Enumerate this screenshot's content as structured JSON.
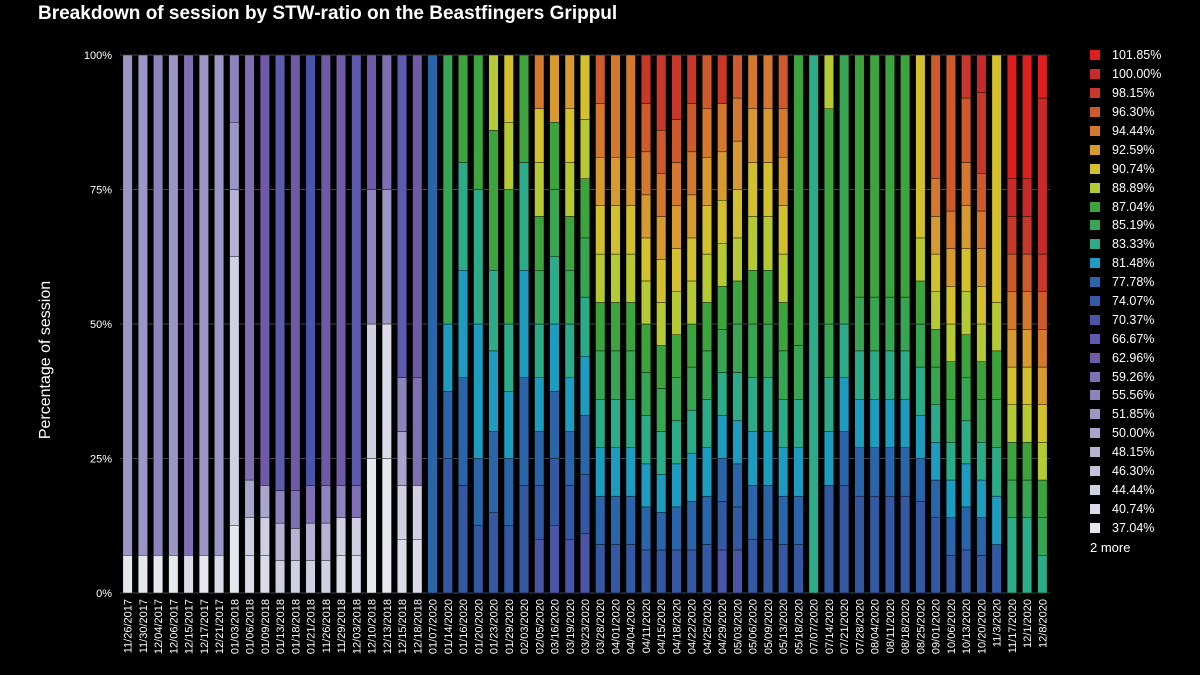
{
  "title": "Breakdown of session by STW-ratio on the Beastfingers Grippul",
  "legend_more": "2 more",
  "legend": [
    {
      "label": "101.85%",
      "color": "#dc1f1f"
    },
    {
      "label": "100.00%",
      "color": "#c62a2a"
    },
    {
      "label": "98.15%",
      "color": "#c8382a"
    },
    {
      "label": "96.30%",
      "color": "#cd5a2c"
    },
    {
      "label": "94.44%",
      "color": "#d3782e"
    },
    {
      "label": "92.59%",
      "color": "#d79a31"
    },
    {
      "label": "90.74%",
      "color": "#d2c02e"
    },
    {
      "label": "88.89%",
      "color": "#b5c934"
    },
    {
      "label": "87.04%",
      "color": "#3da33c"
    },
    {
      "label": "85.19%",
      "color": "#37a552"
    },
    {
      "label": "83.33%",
      "color": "#2bab88"
    },
    {
      "label": "81.48%",
      "color": "#1d9cc0"
    },
    {
      "label": "77.78%",
      "color": "#2a65a9"
    },
    {
      "label": "74.07%",
      "color": "#3558a2"
    },
    {
      "label": "70.37%",
      "color": "#4a55a7"
    },
    {
      "label": "66.67%",
      "color": "#5e5aad"
    },
    {
      "label": "62.96%",
      "color": "#6f5aa7"
    },
    {
      "label": "59.26%",
      "color": "#7f70b4"
    },
    {
      "label": "55.56%",
      "color": "#8d84bd"
    },
    {
      "label": "51.85%",
      "color": "#9b96c6"
    },
    {
      "label": "50.00%",
      "color": "#aaa5cd"
    },
    {
      "label": "48.15%",
      "color": "#b7b2d3"
    },
    {
      "label": "46.30%",
      "color": "#c4c1da"
    },
    {
      "label": "44.44%",
      "color": "#d1cfe2"
    },
    {
      "label": "40.74%",
      "color": "#dcdbe9"
    },
    {
      "label": "37.04%",
      "color": "#e7e7ee"
    }
  ],
  "chart_data": {
    "type": "bar",
    "stacked": true,
    "title": "Breakdown of session by STW-ratio on the Beastfingers Grippul",
    "ylabel": "Percentage of session",
    "xlabel": "",
    "yticks": [
      "0%",
      "25%",
      "50%",
      "75%",
      "100%"
    ],
    "ylim": [
      0,
      100
    ],
    "categories": [
      "11/26/2017",
      "11/30/2017",
      "12/04/2017",
      "12/06/2017",
      "12/15/2017",
      "12/17/2017",
      "12/21/2017",
      "01/03/2018",
      "01/06/2018",
      "01/09/2018",
      "01/13/2018",
      "01/18/2018",
      "01/21/2018",
      "11/26/2018",
      "11/29/2018",
      "12/03/2018",
      "12/10/2018",
      "12/13/2018",
      "12/15/2018",
      "12/18/2018",
      "01/07/2020",
      "01/14/2020",
      "01/16/2020",
      "01/20/2020",
      "01/23/2020",
      "01/29/2020",
      "02/03/2020",
      "02/05/2020",
      "03/16/2020",
      "03/19/2020",
      "03/23/2020",
      "03/28/2020",
      "04/01/2020",
      "04/04/2020",
      "04/11/2020",
      "04/15/2020",
      "04/18/2020",
      "04/22/2020",
      "04/25/2020",
      "04/29/2020",
      "05/03/2020",
      "05/06/2020",
      "05/09/2020",
      "05/13/2020",
      "05/18/2020",
      "07/07/2020",
      "07/14/2020",
      "07/21/2020",
      "07/28/2020",
      "08/04/2020",
      "08/11/2020",
      "08/18/2020",
      "08/25/2020",
      "09/01/2020",
      "10/06/2020",
      "10/13/2020",
      "10/20/2020",
      "11/3/2020",
      "11/17/2020",
      "12/1/2020",
      "12/8/2020"
    ],
    "series_order": [
      "37.04%",
      "40.74%",
      "44.44%",
      "46.30%",
      "48.15%",
      "50.00%",
      "51.85%",
      "55.56%",
      "59.26%",
      "62.96%",
      "66.67%",
      "70.37%",
      "74.07%",
      "77.78%",
      "81.48%",
      "83.33%",
      "85.19%",
      "87.04%",
      "88.89%",
      "90.74%",
      "92.59%",
      "94.44%",
      "96.30%",
      "98.15%",
      "100.00%",
      "101.85%"
    ],
    "stacks": [
      {
        "37.04%": 7,
        "51.85%": 93
      },
      {
        "37.04%": 7,
        "51.85%": 93
      },
      {
        "37.04%": 7,
        "55.56%": 93
      },
      {
        "37.04%": 7,
        "51.85%": 93
      },
      {
        "40.74%": 7,
        "59.26%": 93
      },
      {
        "37.04%": 7,
        "51.85%": 93
      },
      {
        "40.74%": 7,
        "51.85%": 93
      },
      {
        "37.04%": 12.5,
        "44.44%": 50,
        "48.15%": 12.5,
        "51.85%": 12.5,
        "55.56%": 12.5
      },
      {
        "40.74%": 7,
        "44.44%": 7,
        "50.00%": 7,
        "59.26%": 79
      },
      {
        "40.74%": 7,
        "44.44%": 7,
        "50.00%": 6,
        "62.96%": 80
      },
      {
        "44.44%": 6,
        "48.15%": 7,
        "55.56%": 6,
        "66.67%": 81
      },
      {
        "44.44%": 6,
        "48.15%": 6,
        "59.26%": 7,
        "62.96%": 81
      },
      {
        "44.44%": 6,
        "48.15%": 7,
        "59.26%": 7,
        "70.37%": 80
      },
      {
        "44.44%": 6,
        "48.15%": 7,
        "55.56%": 7,
        "62.96%": 80
      },
      {
        "40.74%": 7,
        "44.44%": 7,
        "55.56%": 6,
        "62.96%": 80
      },
      {
        "40.74%": 7,
        "44.44%": 7,
        "59.26%": 6,
        "59.26 %": 0,
        "66.67%": 80
      },
      {
        "37.04%": 25,
        "44.44%": 25,
        "55.56%": 25,
        "62.96%": 25
      },
      {
        "37.04%": 25,
        "40.74%": 25,
        "51.85%": 25,
        "59.26%": 25
      },
      {
        "40.74%": 10,
        "44.44%": 10,
        "50.00%": 10,
        "55.56%": 10,
        "66.67%": 60
      },
      {
        "40.74%": 10,
        "44.44%": 10,
        "59.26%": 20,
        "62.96%": 60
      },
      {
        "77.78%": 100
      },
      {
        "74.07%": 25,
        "77.78%": 12.5,
        "81.48%": 12.5,
        "85.19%": 50
      },
      {
        "74.07%": 20,
        "77.78%": 20,
        "81.48%": 20,
        "83.33%": 20,
        "87.04%": 20
      },
      {
        "74.07%": 12.5,
        "77.78%": 12.5,
        "81.48%": 25,
        "83.33%": 25,
        "87.04%": 25
      },
      {
        "74.07%": 15,
        "77.78%": 15,
        "81.48%": 15,
        "83.33%": 15,
        "87.04%": 26,
        "88.89%": 14
      },
      {
        "74.07%": 12.5,
        "77.78%": 12.5,
        "81.48%": 12.5,
        "83.33%": 12.5,
        "87.04%": 25,
        "88.89%": 12.5,
        "90.74%": 12.5
      },
      {
        "74.07%": 20,
        "77.78%": 20,
        "81.48%": 20,
        "83.33%": 20,
        "87.04%": 20
      },
      {
        "70.37%": 10,
        "74.07%": 10,
        "77.78%": 10,
        "81.48%": 10,
        "83.33%": 10,
        "85.19%": 10,
        "87.04%": 10,
        "88.89%": 10,
        "90.74%": 10,
        "94.44%": 10
      },
      {
        "70.37%": 12.5,
        "74.07%": 12.5,
        "77.78%": 12.5,
        "81.48%": 12.5,
        "83.33%": 12.5,
        "85.19%": 12.5,
        "87.04%": 12.5,
        "92.59%": 12.5
      },
      {
        "70.37%": 10,
        "74.07%": 10,
        "77.78%": 10,
        "81.48%": 10,
        "83.33%": 10,
        "85.19%": 10,
        "87.04%": 10,
        "88.89%": 10,
        "90.74%": 10,
        "92.59%": 10
      },
      {
        "70.37%": 11,
        "74.07%": 11,
        "77.78%": 11,
        "81.48%": 11,
        "83.33%": 11,
        "85.19%": 11,
        "87.04%": 11,
        "88.89%": 11,
        "90.74%": 12
      },
      {
        "74.07%": 9,
        "77.78%": 9,
        "81.48%": 9,
        "83.33%": 9,
        "85.19%": 9,
        "87.04%": 9,
        "88.89%": 9,
        "90.74%": 9,
        "92.59%": 9,
        "94.44%": 10,
        "96.30%": 9
      },
      {
        "74.07%": 9,
        "77.78%": 9,
        "81.48%": 9,
        "83.33%": 9,
        "85.19%": 9,
        "87.04%": 9,
        "88.89%": 9,
        "90.74%": 9,
        "92.59%": 9,
        "94.44%": 19
      },
      {
        "74.07%": 9,
        "77.78%": 9,
        "81.48%": 9,
        "83.33%": 9,
        "85.19%": 9,
        "87.04%": 9,
        "88.89%": 9,
        "90.74%": 9,
        "92.59%": 9,
        "94.44%": 19
      },
      {
        "74.07%": 8,
        "77.78%": 8,
        "81.48%": 8,
        "83.33%": 9,
        "85.19%": 8,
        "87.04%": 9,
        "88.89%": 8,
        "90.74%": 8,
        "92.59%": 8,
        "94.44%": 8,
        "96.30%": 9,
        "98.15%": 9
      },
      {
        "74.07%": 8,
        "77.78%": 7,
        "81.48%": 7,
        "83.33%": 8,
        "85.19%": 8,
        "87.04%": 8,
        "88.89%": 8,
        "90.74%": 8,
        "92.59%": 8,
        "94.44%": 8,
        "96.30%": 8,
        "98.15%": 14
      },
      {
        "74.07%": 8,
        "77.78%": 8,
        "81.48%": 8,
        "83.33%": 8,
        "85.19%": 8,
        "87.04%": 8,
        "88.89%": 8,
        "90.74%": 8,
        "92.59%": 8,
        "94.44%": 8,
        "96.30%": 8,
        "98.15%": 12
      },
      {
        "74.07%": 8,
        "77.78%": 9,
        "81.48%": 9,
        "83.33%": 8,
        "85.19%": 8,
        "87.04%": 8,
        "88.89%": 8,
        "90.74%": 8,
        "92.59%": 8,
        "94.44%": 8,
        "96.30%": 9,
        "98.15%": 9
      },
      {
        "74.07%": 9,
        "77.78%": 9,
        "81.48%": 9,
        "83.33%": 9,
        "85.19%": 9,
        "87.04%": 9,
        "88.89%": 9,
        "90.74%": 9,
        "92.59%": 9,
        "94.44%": 9,
        "96.30%": 10
      },
      {
        "70.37%": 8,
        "74.07%": 9,
        "77.78%": 8,
        "81.48%": 8,
        "83.33%": 8,
        "85.19%": 8,
        "87.04%": 8,
        "88.89%": 8,
        "90.74%": 8,
        "92.59%": 9,
        "94.44%": 9,
        "98.15%": 9
      },
      {
        "70.37%": 8,
        "74.07%": 8,
        "77.78%": 8,
        "81.48%": 8,
        "83.33%": 9,
        "85.19%": 9,
        "87.04%": 8,
        "88.89%": 8,
        "90.74%": 9,
        "92.59%": 9,
        "94.44%": 8,
        "96.30%": 8
      },
      {
        "74.07%": 10,
        "77.78%": 10,
        "81.48%": 10,
        "83.33%": 10,
        "85.19%": 10,
        "87.04%": 10,
        "88.89%": 10,
        "90.74%": 10,
        "92.59%": 10,
        "94.44%": 10
      },
      {
        "74.07%": 10,
        "77.78%": 10,
        "81.48%": 10,
        "83.33%": 10,
        "85.19%": 10,
        "87.04%": 10,
        "88.89%": 10,
        "90.74%": 10,
        "92.59%": 10,
        "94.44%": 10
      },
      {
        "74.07%": 9,
        "77.78%": 9,
        "81.48%": 9,
        "83.33%": 9,
        "85.19%": 9,
        "87.04%": 9,
        "88.89%": 9,
        "90.74%": 9,
        "92.59%": 9,
        "94.44%": 9,
        "96.30%": 10
      },
      {
        "74.07%": 9,
        "77.78%": 9,
        "81.48%": 9,
        "83.33%": 9,
        "85.19%": 10,
        "87.04%": 54
      },
      {
        "83.33%": 100
      },
      {
        "74.07%": 20,
        "81.48%": 10,
        "83.33%": 10,
        "85.19%": 10,
        "87.04%": 40,
        "88.89%": 10
      },
      {
        "74.07%": 20,
        "77.78%": 10,
        "81.48%": 10,
        "83.33%": 10,
        "85.19%": 50
      },
      {
        "74.07%": 18,
        "77.78%": 9,
        "81.48%": 9,
        "83.33%": 9,
        "85.19%": 10,
        "87.04%": 45
      },
      {
        "74.07%": 18,
        "77.78%": 9,
        "81.48%": 9,
        "83.33%": 9,
        "85.19%": 10,
        "87.04%": 45
      },
      {
        "74.07%": 18,
        "77.78%": 9,
        "81.48%": 9,
        "83.33%": 9,
        "85.19%": 10,
        "87.04%": 45
      },
      {
        "74.07%": 18,
        "77.78%": 9,
        "81.48%": 9,
        "83.33%": 9,
        "85.19%": 10,
        "87.04%": 45
      },
      {
        "74.07%": 17,
        "77.78%": 8,
        "81.48%": 8,
        "83.33%": 9,
        "85.19%": 8,
        "87.04%": 8,
        "88.89%": 8,
        "90.74%": 34
      },
      {
        "74.07%": 14,
        "77.78%": 7,
        "81.48%": 7,
        "83.33%": 7,
        "85.19%": 7,
        "87.04%": 7,
        "88.89%": 7,
        "90.74%": 7,
        "92.59%": 7,
        "94.44%": 7,
        "96.30%": 23
      },
      {
        "74.07%": 7,
        "77.78%": 7,
        "81.48%": 7,
        "83.33%": 7,
        "85.19%": 8,
        "87.04%": 7,
        "88.89%": 7,
        "90.74%": 7,
        "92.59%": 7,
        "94.44%": 7,
        "96.30%": 29
      },
      {
        "74.07%": 8,
        "77.78%": 8,
        "81.48%": 8,
        "83.33%": 8,
        "85.19%": 8,
        "87.04%": 8,
        "88.89%": 8,
        "90.74%": 8,
        "92.59%": 8,
        "94.44%": 8,
        "96.30%": 12,
        "98.15%": 8
      },
      {
        "74.07%": 7,
        "77.78%": 7,
        "81.48%": 7,
        "83.33%": 7,
        "85.19%": 8,
        "87.04%": 7,
        "88.89%": 7,
        "90.74%": 7,
        "92.59%": 7,
        "94.44%": 7,
        "96.30%": 7,
        "98.15%": 15,
        "100.00%": 7
      },
      {
        "74.07%": 9,
        "81.48%": 9,
        "83.33%": 9,
        "85.19%": 9,
        "87.04%": 9,
        "88.89%": 9,
        "90.74%": 46
      },
      {
        "83.33%": 14,
        "85.19%": 7,
        "87.04%": 7,
        "88.89%": 7,
        "90.74%": 7,
        "92.59%": 7,
        "94.44%": 7,
        "96.30%": 7,
        "98.15%": 7,
        "100.00%": 7,
        "101.85%": 23
      },
      {
        "83.33%": 14,
        "85.19%": 7,
        "87.04%": 7,
        "88.89%": 7,
        "90.74%": 7,
        "92.59%": 7,
        "94.44%": 7,
        "96.30%": 7,
        "98.15%": 7,
        "100.00%": 7,
        "101.85%": 23
      },
      {
        "83.33%": 7,
        "85.19%": 7,
        "87.04%": 7,
        "88.89%": 7,
        "90.74%": 7,
        "92.59%": 7,
        "94.44%": 7,
        "96.30%": 7,
        "98.15%": 7,
        "100.00%": 29,
        "101.85%": 8
      }
    ]
  }
}
